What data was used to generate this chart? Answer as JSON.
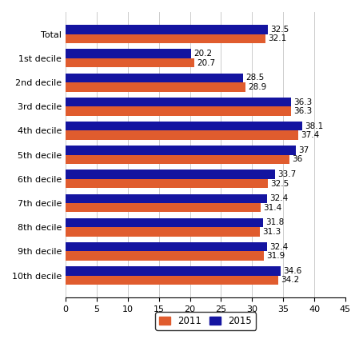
{
  "categories": [
    "Total",
    "1st decile",
    "2nd decile",
    "3rd decile",
    "4th decile",
    "5th decile",
    "6th decile",
    "7th decile",
    "8th decile",
    "9th decile",
    "10th decile"
  ],
  "values_2011": [
    32.1,
    20.7,
    28.9,
    36.3,
    37.4,
    36.0,
    32.5,
    31.4,
    31.3,
    31.9,
    34.2
  ],
  "values_2015": [
    32.5,
    20.2,
    28.5,
    36.3,
    38.1,
    37.0,
    33.7,
    32.4,
    31.8,
    32.4,
    34.6
  ],
  "color_2011": "#E05C2E",
  "color_2015": "#1414A0",
  "xlim": [
    0,
    45
  ],
  "xticks": [
    0,
    5,
    10,
    15,
    20,
    25,
    30,
    35,
    40,
    45
  ],
  "legend_labels": [
    "2011",
    "2015"
  ],
  "bar_height": 0.38,
  "label_fontsize": 7.5,
  "tick_fontsize": 8,
  "legend_fontsize": 8.5
}
